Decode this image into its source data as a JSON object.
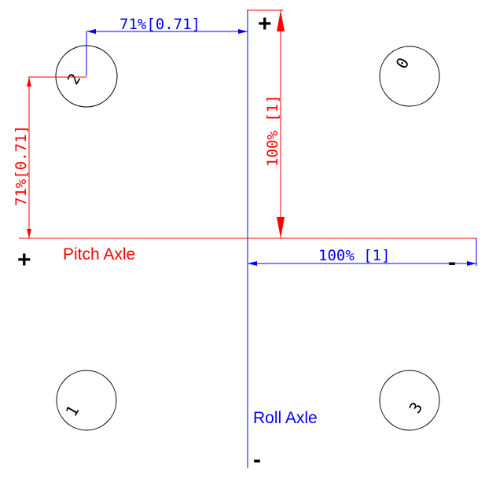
{
  "diagram": {
    "motors": [
      {
        "id": "motor-0",
        "label": "0"
      },
      {
        "id": "motor-1",
        "label": "1"
      },
      {
        "id": "motor-2",
        "label": "2"
      },
      {
        "id": "motor-3",
        "label": "3"
      }
    ],
    "axes": {
      "pitch": {
        "label": "Pitch Axle",
        "plus": "+",
        "minus": "-",
        "color": "#ff0000"
      },
      "roll": {
        "label": "Roll Axle",
        "plus": "+",
        "minus": "-",
        "color": "#0000ff"
      }
    },
    "dimensions": {
      "top_horizontal": "71%[0.71]",
      "left_vertical": "71%[0.71]",
      "center_vertical": "100% [1]",
      "right_horizontal": "100% [1]"
    },
    "colors": {
      "red": "#ff0000",
      "blue": "#0000ff",
      "ink": "#000000"
    }
  }
}
